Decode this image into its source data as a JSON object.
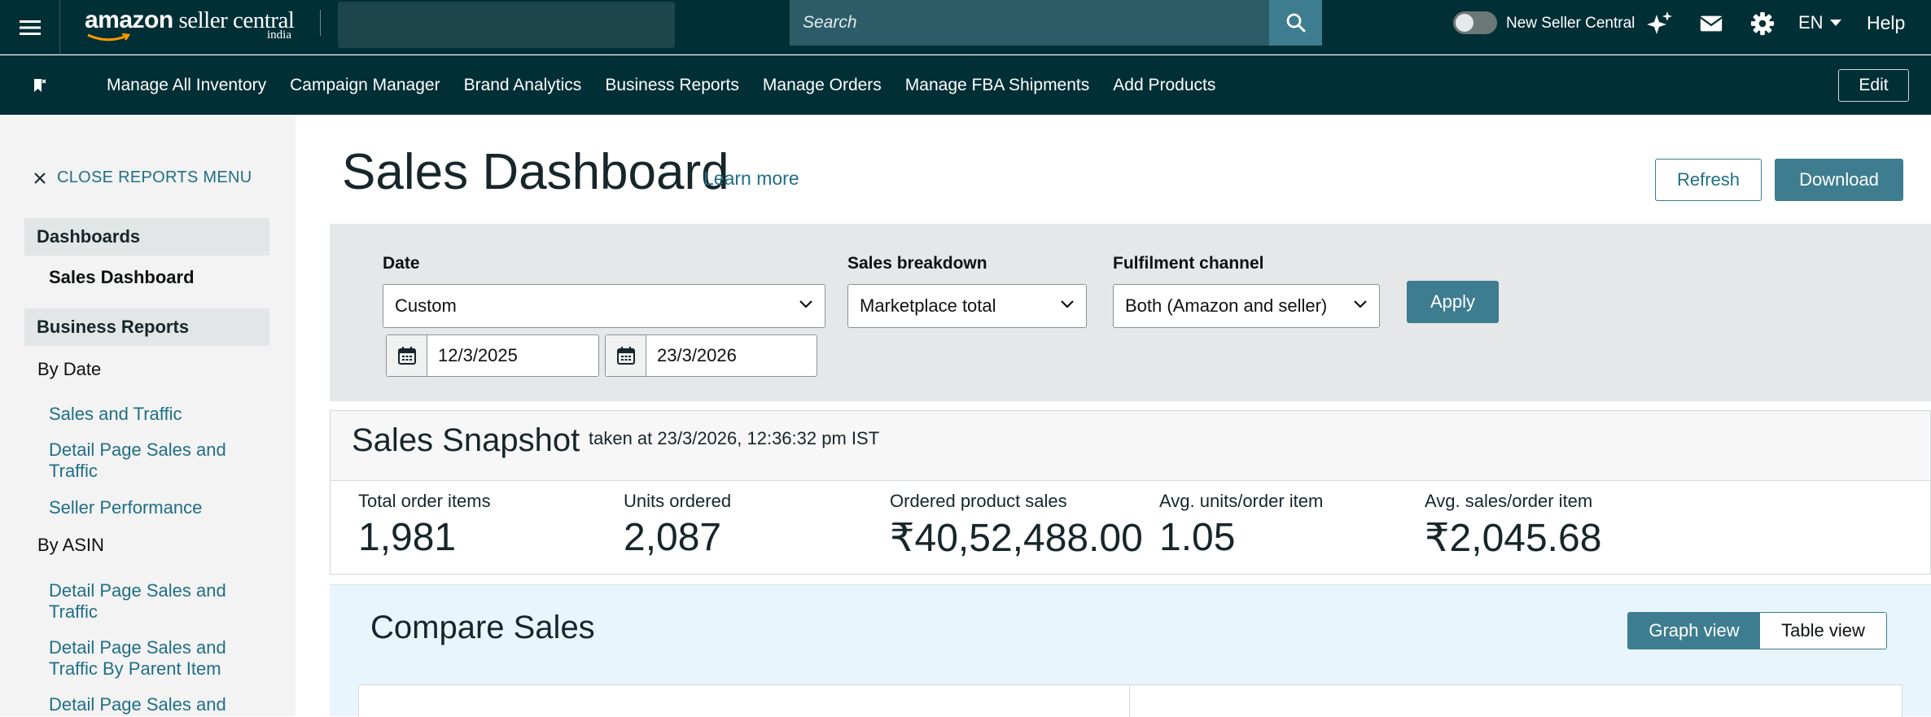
{
  "header": {
    "logo_main": "amazon",
    "logo_light": " seller central",
    "logo_sub": "india",
    "search_placeholder": "Search",
    "toggle_label": "New Seller Central",
    "language": "EN",
    "help": "Help",
    "icons": [
      "menu-icon",
      "search-icon",
      "sparkle-icon",
      "mail-icon",
      "gear-icon"
    ]
  },
  "nav": {
    "items": [
      "Manage All Inventory",
      "Campaign Manager",
      "Brand Analytics",
      "Business Reports",
      "Manage Orders",
      "Manage FBA Shipments",
      "Add Products"
    ],
    "edit": "Edit"
  },
  "sidebar": {
    "close_label": "CLOSE REPORTS MENU",
    "dashboards_head": "Dashboards",
    "dashboards_active": "Sales Dashboard",
    "business_head": "Business Reports",
    "by_date": "By Date",
    "date_links": [
      "Sales and Traffic",
      "Detail Page Sales and Traffic",
      "Seller Performance"
    ],
    "by_asin": "By ASIN",
    "asin_links": [
      "Detail Page Sales and Traffic",
      "Detail Page Sales and Traffic By Parent Item",
      "Detail Page Sales and"
    ]
  },
  "page": {
    "title": "Sales Dashboard",
    "learn_more": "Learn more",
    "refresh": "Refresh",
    "download": "Download"
  },
  "filters": {
    "date_label": "Date",
    "date_value": "Custom",
    "breakdown_label": "Sales breakdown",
    "breakdown_value": "Marketplace total",
    "channel_label": "Fulfilment channel",
    "channel_value": "Both (Amazon and seller)",
    "apply": "Apply",
    "start_date": "12/3/2025",
    "end_date": "23/3/2026"
  },
  "snapshot": {
    "title": "Sales Snapshot",
    "taken_at": "taken at 23/3/2026, 12:36:32 pm IST",
    "metrics": [
      {
        "label": "Total order items",
        "value": "1,981"
      },
      {
        "label": "Units ordered",
        "value": "2,087"
      },
      {
        "label": "Ordered product sales",
        "value": "₹40,52,488.00"
      },
      {
        "label": "Avg. units/order item",
        "value": "1.05"
      },
      {
        "label": "Avg. sales/order item",
        "value": "₹2,045.68"
      }
    ]
  },
  "compare": {
    "title": "Compare Sales",
    "graph_view": "Graph view",
    "table_view": "Table view"
  },
  "colors": {
    "header_bg": "#002f36",
    "accent": "#3d7d8f",
    "link": "#1f6f86",
    "compare_bg": "#e9f5fc"
  }
}
